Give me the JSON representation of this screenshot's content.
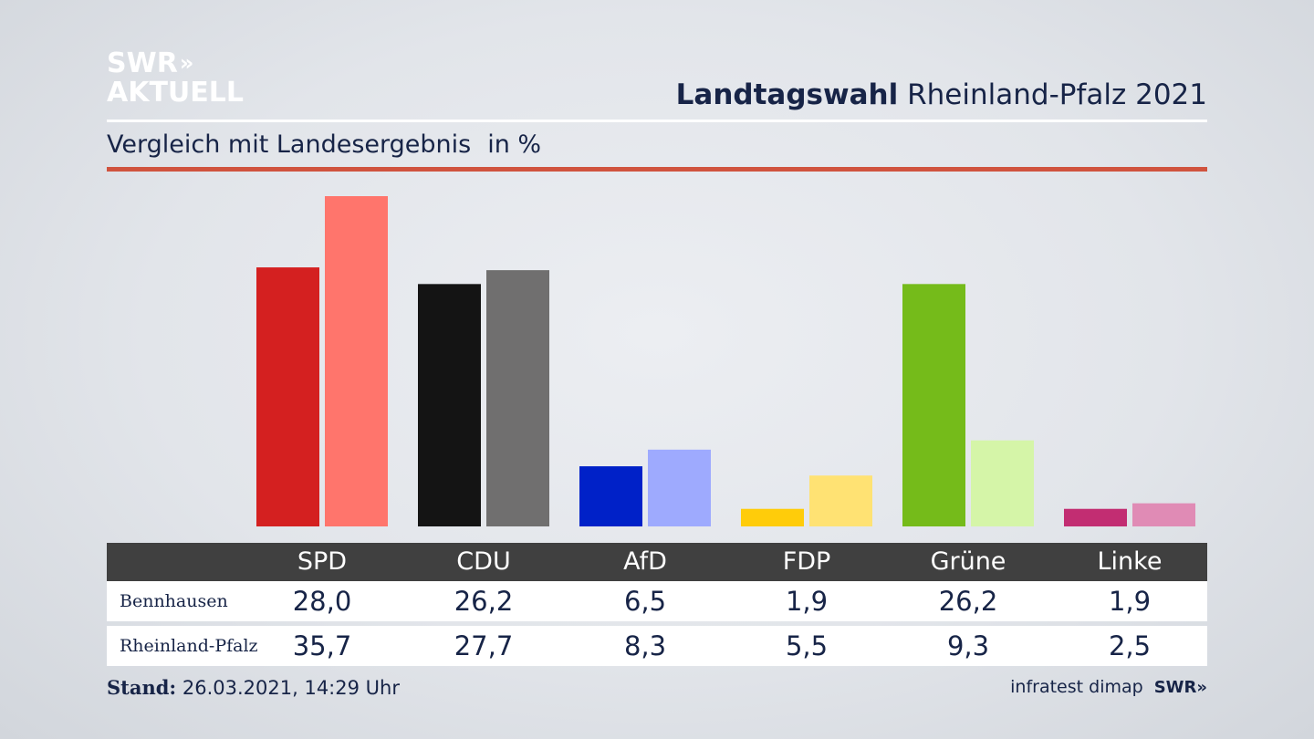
{
  "logo": {
    "line1": "SWR",
    "chevrons": "»",
    "line2": "AKTUELL"
  },
  "header": {
    "title_bold": "Landtagswahl",
    "title_rest": "Rheinland-Pfalz 2021"
  },
  "subtitle": {
    "text": "Vergleich mit Landesergebnis",
    "unit": "in %"
  },
  "colors": {
    "accent_rule": "#d0533e",
    "SPD": [
      "#d42020",
      "#ff756c"
    ],
    "CDU": [
      "#141414",
      "#706f6f"
    ],
    "AfD": [
      "#0021c8",
      "#9eaafe"
    ],
    "FDP": [
      "#ffcc0a",
      "#ffe273"
    ],
    "Grüne": [
      "#75bb1a",
      "#d5f5a8"
    ],
    "Linke": [
      "#c22d72",
      "#e08bb5"
    ]
  },
  "chart_data": {
    "type": "bar",
    "title": "Landtagswahl Rheinland-Pfalz 2021",
    "subtitle": "Vergleich mit Landesergebnis",
    "ylabel": "in %",
    "ylim": [
      0,
      35.7
    ],
    "categories": [
      "SPD",
      "CDU",
      "AfD",
      "FDP",
      "Grüne",
      "Linke"
    ],
    "series": [
      {
        "name": "Bennhausen",
        "values": [
          28.0,
          26.2,
          6.5,
          1.9,
          26.2,
          1.9
        ]
      },
      {
        "name": "Rheinland-Pfalz",
        "values": [
          35.7,
          27.7,
          8.3,
          5.5,
          9.3,
          2.5
        ]
      }
    ]
  },
  "table": {
    "headers": [
      "SPD",
      "CDU",
      "AfD",
      "FDP",
      "Grüne",
      "Linke"
    ],
    "rows": [
      {
        "label": "Bennhausen",
        "values": [
          "28,0",
          "26,2",
          "6,5",
          "1,9",
          "26,2",
          "1,9"
        ]
      },
      {
        "label": "Rheinland-Pfalz",
        "values": [
          "35,7",
          "27,7",
          "8,3",
          "5,5",
          "9,3",
          "2,5"
        ]
      }
    ]
  },
  "footer": {
    "stand_label": "Stand:",
    "stand_value": "26.03.2021, 14:29 Uhr",
    "source": "infratest dimap",
    "source_logo": "SWR»"
  }
}
